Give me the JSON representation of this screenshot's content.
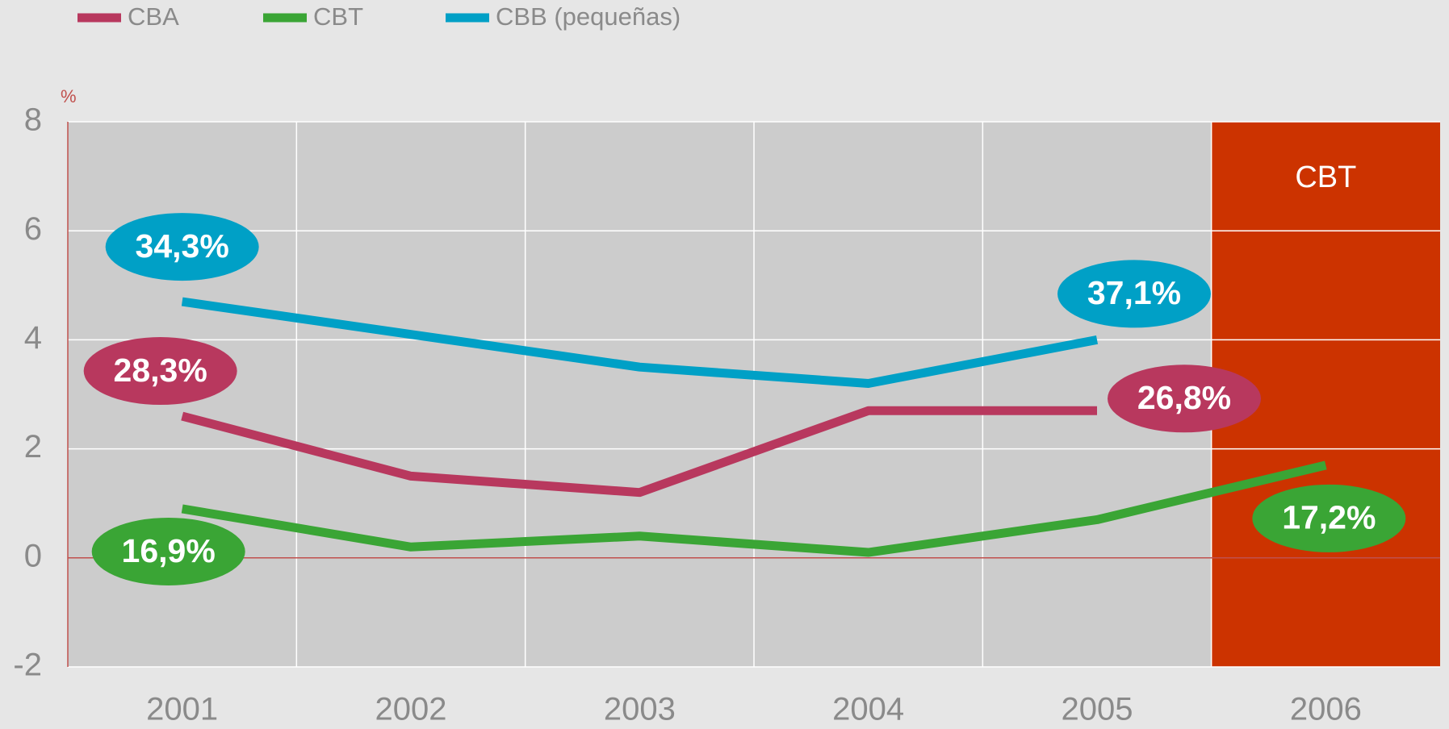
{
  "chart_data": {
    "type": "line",
    "categories": [
      "2001",
      "2002",
      "2003",
      "2004",
      "2005",
      "2006"
    ],
    "series": [
      {
        "name": "CBA",
        "color": "#b8385e",
        "values": [
          2.6,
          1.5,
          1.2,
          2.7,
          2.7,
          null
        ]
      },
      {
        "name": "CBT",
        "color": "#3aa535",
        "values": [
          0.9,
          0.2,
          0.4,
          0.1,
          0.7,
          1.7
        ]
      },
      {
        "name": "CBB (pequeñas)",
        "color": "#00a0c6",
        "values": [
          4.7,
          4.1,
          3.5,
          3.2,
          4.0,
          null
        ]
      }
    ],
    "ylim": [
      -2,
      8
    ],
    "yticks": [
      -2,
      0,
      2,
      4,
      6,
      8
    ],
    "y_unit": "%",
    "grid": true,
    "highlight": {
      "category": 5,
      "label": "CBT",
      "color": "#cc3300"
    },
    "annotations": [
      {
        "text": "34,3%",
        "series": 2,
        "x": 0
      },
      {
        "text": "28,3%",
        "series": 0,
        "x": 0
      },
      {
        "text": "16,9%",
        "series": 1,
        "x": 0
      },
      {
        "text": "37,1%",
        "series": 2,
        "x": 4
      },
      {
        "text": "26,8%",
        "series": 0,
        "x": 4
      },
      {
        "text": "17,2%",
        "series": 1,
        "x": 5
      }
    ]
  }
}
